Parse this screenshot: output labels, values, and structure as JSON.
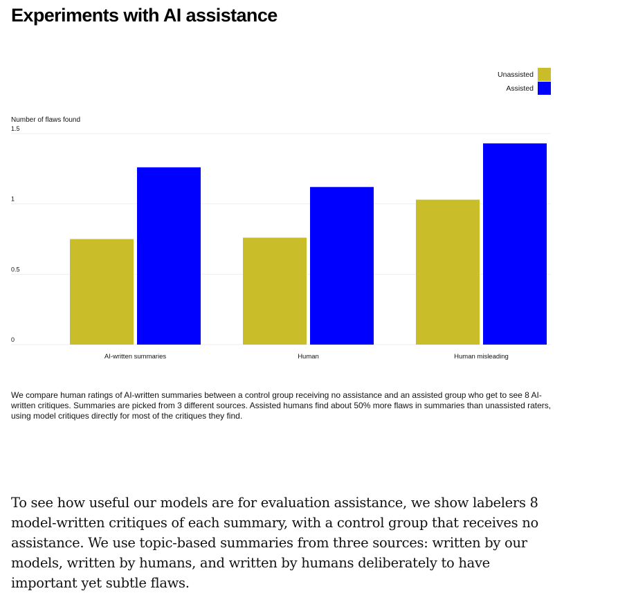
{
  "title": "Experiments with AI assistance",
  "chart_data": {
    "type": "bar",
    "title": "",
    "ylabel": "Number of flaws found",
    "xlabel": "",
    "categories": [
      "AI-written summaries",
      "Human",
      "Human misleading"
    ],
    "series": [
      {
        "name": "Unassisted",
        "color": "#c9bd29",
        "values": [
          0.75,
          0.76,
          1.03
        ]
      },
      {
        "name": "Assisted",
        "color": "#0000ff",
        "values": [
          1.26,
          1.12,
          1.43
        ]
      }
    ],
    "ylim": [
      0,
      1.5
    ],
    "yticks": [
      0,
      0.5,
      1,
      1.5
    ],
    "ytick_labels": [
      "0",
      "0.5",
      "1",
      "1.5"
    ],
    "grid": true,
    "legend_position": "top-right"
  },
  "caption": "We compare human ratings of AI-written summaries between a control group receiving no assistance and an assisted group who get to see 8 AI-written critiques. Summaries are picked from 3 different sources. Assisted humans find about 50% more flaws in summaries than unassisted raters, using model critiques directly for most of the critiques they find.",
  "body_text": "To see how useful our models are for evaluation assistance, we show labelers 8 model-written critiques of each summary, with a control group that receives no assistance. We use topic-based summaries from three sources: written by our models, written by humans, and written by humans deliberately to have important yet subtle flaws."
}
